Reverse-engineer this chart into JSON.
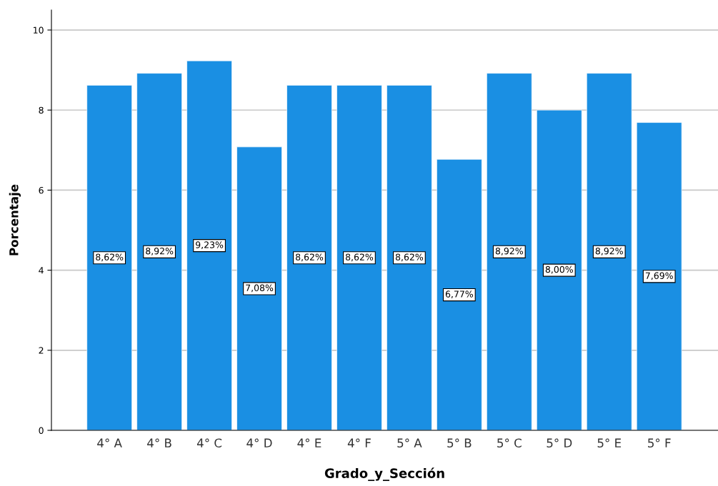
{
  "chart_data": {
    "type": "bar",
    "xlabel": "Grado_y_Sección",
    "ylabel": "Porcentaje",
    "categories": [
      "4° A",
      "4° B",
      "4° C",
      "4° D",
      "4° E",
      "4° F",
      "5° A",
      "5° B",
      "5° C",
      "5° D",
      "5° E",
      "5° F"
    ],
    "values": [
      8.62,
      8.92,
      9.23,
      7.08,
      8.62,
      8.62,
      8.62,
      6.77,
      8.92,
      8.0,
      8.92,
      7.69
    ],
    "value_labels": [
      "8,62%",
      "8,92%",
      "9,23%",
      "7,08%",
      "8,62%",
      "8,62%",
      "8,62%",
      "6,77%",
      "8,92%",
      "8,00%",
      "8,92%",
      "7,69%"
    ],
    "color": "#1a8fe3",
    "ylim": [
      0,
      10.5
    ],
    "yticks": [
      0,
      2,
      4,
      6,
      8,
      10
    ],
    "grid": "y",
    "legend": false
  }
}
